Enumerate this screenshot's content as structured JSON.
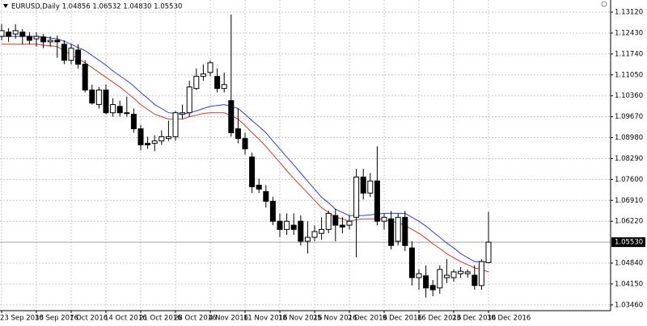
{
  "chart_data": {
    "type": "candlestick",
    "title": "EURUSD,Daily  1.04856 1.06532 1.04830 1.05530",
    "categories": [
      "23 Sep 2016",
      null,
      null,
      null,
      null,
      "30 Sep 2016",
      null,
      null,
      null,
      null,
      "7 Oct 2016",
      null,
      null,
      null,
      null,
      "14 Oct 2016",
      null,
      null,
      null,
      null,
      "21 Oct 2016",
      null,
      null,
      null,
      null,
      "28 Oct 2016",
      null,
      null,
      null,
      null,
      "4 Nov 2016",
      null,
      null,
      null,
      null,
      "11 Nov 2016",
      null,
      null,
      null,
      null,
      "18 Nov 2016",
      null,
      null,
      null,
      null,
      "25 Nov 2016",
      null,
      null,
      null,
      null,
      "2 Dec 2016",
      null,
      null,
      null,
      null,
      "9 Dec 2016",
      null,
      null,
      null,
      null,
      "16 Dec 2016",
      null,
      null,
      null,
      null,
      "23 Dec 2016",
      null,
      null,
      null,
      null,
      "30 Dec 2016"
    ],
    "open": [
      1.1232,
      1.1246,
      1.124,
      1.1246,
      1.1232,
      1.1224,
      1.123,
      1.1214,
      1.1219,
      1.1206,
      1.1153,
      1.1187,
      1.114,
      1.1055,
      1.1007,
      1.1055,
      1.098,
      1.1001,
      1.098,
      1.0975,
      1.0927,
      1.0879,
      1.0879,
      1.0887,
      1.0895,
      1.0901,
      1.0975,
      1.098,
      1.106,
      1.11,
      1.1113,
      1.11,
      1.106,
      1.102,
      1.0927,
      1.0895,
      1.0834,
      1.0741,
      1.072,
      1.0688,
      1.0622,
      1.0595,
      1.0609,
      1.0622,
      1.0556,
      1.0569,
      1.0582,
      1.0595,
      1.0641,
      1.0609,
      1.0609,
      1.0635,
      1.0768,
      1.0715,
      1.0755,
      1.0622,
      1.063,
      1.0556,
      1.0635,
      1.0534,
      1.0436,
      1.0442,
      1.041,
      1.0402,
      1.0436,
      1.0436,
      1.0449,
      1.0449,
      1.0444,
      1.041,
      1.04856
    ],
    "high": [
      1.1272,
      1.1259,
      1.1272,
      1.1256,
      1.1246,
      1.1246,
      1.124,
      1.1232,
      1.1235,
      1.1219,
      1.1206,
      1.1206,
      1.1153,
      1.1073,
      1.1065,
      1.1073,
      1.1028,
      1.102,
      1.1033,
      1.0994,
      1.094,
      1.0901,
      1.0906,
      1.0922,
      1.0954,
      1.0986,
      1.1007,
      1.1086,
      1.1126,
      1.114,
      1.1153,
      1.1126,
      1.1113,
      1.1304,
      1.0994,
      1.0914,
      1.0848,
      1.0763,
      1.0741,
      1.0702,
      1.0648,
      1.0648,
      1.0648,
      1.0641,
      1.0622,
      1.0609,
      1.0635,
      1.0657,
      1.0662,
      1.0635,
      1.0641,
      1.0795,
      1.0795,
      1.0781,
      1.0869,
      1.0648,
      1.0656,
      1.0648,
      1.0656,
      1.0556,
      1.0463,
      1.0476,
      1.0428,
      1.0476,
      1.0497,
      1.0463,
      1.0471,
      1.0463,
      1.0476,
      1.0497,
      1.06532
    ],
    "low": [
      1.1219,
      1.1214,
      1.1224,
      1.1206,
      1.1206,
      1.1198,
      1.1193,
      1.1198,
      1.1161,
      1.114,
      1.114,
      1.1126,
      1.1047,
      1.1007,
      1.0994,
      1.0975,
      1.0967,
      1.0967,
      1.0967,
      1.0914,
      1.0856,
      1.0861,
      1.0853,
      1.0874,
      1.0887,
      1.0887,
      1.0959,
      1.0967,
      1.1055,
      1.1086,
      1.11,
      1.1047,
      1.1047,
      1.0901,
      1.0879,
      1.0842,
      1.0715,
      1.0715,
      1.0667,
      1.0609,
      1.0569,
      1.0577,
      1.0577,
      1.0542,
      1.0516,
      1.0556,
      1.0561,
      1.0582,
      1.0556,
      1.0582,
      1.0595,
      1.0503,
      1.0694,
      1.0702,
      1.0609,
      1.0595,
      1.0529,
      1.0542,
      1.0524,
      1.041,
      1.0396,
      1.037,
      1.0375,
      1.0383,
      1.0418,
      1.0423,
      1.0436,
      1.0436,
      1.0396,
      1.0396,
      1.0483
    ],
    "close": [
      1.1251,
      1.1232,
      1.1251,
      1.1232,
      1.1219,
      1.1232,
      1.1214,
      1.1219,
      1.1214,
      1.1153,
      1.1193,
      1.114,
      1.1055,
      1.1012,
      1.1055,
      1.098,
      1.1007,
      1.098,
      1.098,
      1.0927,
      1.0874,
      1.0874,
      1.0887,
      1.0901,
      1.0901,
      1.098,
      1.098,
      1.1065,
      1.11,
      1.1108,
      1.1145,
      1.106,
      1.1073,
      1.0914,
      1.0895,
      1.0861,
      1.0736,
      1.0728,
      1.0688,
      1.0622,
      1.0595,
      1.0622,
      1.0595,
      1.0556,
      1.0569,
      1.0588,
      1.0595,
      1.0648,
      1.0609,
      1.0603,
      1.0622,
      1.0768,
      1.0715,
      1.0755,
      1.0622,
      1.0635,
      1.0542,
      1.0635,
      1.0542,
      1.0436,
      1.0449,
      1.0402,
      1.0396,
      1.0463,
      1.0444,
      1.0455,
      1.0457,
      1.0455,
      1.041,
      1.0489,
      1.0553
    ],
    "series": [
      {
        "color": "#2f3fd0",
        "values": [
          1.1232,
          1.1232,
          1.1232,
          1.1232,
          1.1232,
          1.1232,
          1.123,
          1.1227,
          1.1224,
          1.1216,
          1.1206,
          1.1195,
          1.1185,
          1.1169,
          1.1153,
          1.1137,
          1.1118,
          1.1102,
          1.1086,
          1.1068,
          1.1047,
          1.1028,
          1.1007,
          1.0994,
          1.098,
          1.0978,
          1.0975,
          1.098,
          1.0986,
          1.0994,
          1.1001,
          1.1004,
          1.1007,
          1.1001,
          1.0994,
          1.0975,
          1.0954,
          1.0935,
          1.0914,
          1.0887,
          1.0861,
          1.0834,
          1.0808,
          1.0781,
          1.0754,
          1.0728,
          1.0701,
          1.0683,
          1.0662,
          1.0651,
          1.0641,
          1.0641,
          1.0641,
          1.0643,
          1.0646,
          1.0648,
          1.0648,
          1.0648,
          1.0648,
          1.0635,
          1.0622,
          1.0606,
          1.0587,
          1.0569,
          1.055,
          1.0534,
          1.0515,
          1.0502,
          1.0489,
          1.0489,
          1.0489
        ]
      },
      {
        "color": "#d03a2a",
        "values": [
          1.1206,
          1.1206,
          1.1206,
          1.1206,
          1.1206,
          1.1206,
          1.1203,
          1.1201,
          1.1198,
          1.1185,
          1.1171,
          1.1158,
          1.1145,
          1.1129,
          1.1113,
          1.1097,
          1.1081,
          1.1065,
          1.1047,
          1.1028,
          1.1007,
          1.0991,
          1.0975,
          1.0967,
          1.0959,
          1.0959,
          1.0959,
          1.0967,
          1.0972,
          1.0978,
          1.098,
          1.098,
          1.098,
          1.097,
          1.0959,
          1.0938,
          1.0914,
          1.0893,
          1.0869,
          1.0842,
          1.0816,
          1.0789,
          1.0763,
          1.0739,
          1.0715,
          1.0691,
          1.0667,
          1.0651,
          1.0635,
          1.063,
          1.0622,
          1.0627,
          1.063,
          1.063,
          1.063,
          1.0627,
          1.0622,
          1.0617,
          1.0609,
          1.0595,
          1.0582,
          1.0566,
          1.0548,
          1.0532,
          1.0515,
          1.0502,
          1.0489,
          1.0479,
          1.0468,
          1.0463,
          1.0455
        ]
      }
    ],
    "current_price": {
      "value": 1.0553,
      "label": "1.05530"
    },
    "ylim": [
      1.0327,
      1.1352
    ],
    "yticks": [
      {
        "value": 1.1312,
        "label": "1.13120"
      },
      {
        "value": 1.1243,
        "label": "1.12430"
      },
      {
        "value": 1.1174,
        "label": "1.11740"
      },
      {
        "value": 1.1105,
        "label": "1.11050"
      },
      {
        "value": 1.1036,
        "label": "1.10360"
      },
      {
        "value": 1.0967,
        "label": "1.09670"
      },
      {
        "value": 1.0898,
        "label": "1.08980"
      },
      {
        "value": 1.0829,
        "label": "1.08290"
      },
      {
        "value": 1.076,
        "label": "1.07600"
      },
      {
        "value": 1.0691,
        "label": "1.06910"
      },
      {
        "value": 1.0622,
        "label": "1.06220"
      },
      {
        "value": 1.0484,
        "label": "1.04840"
      },
      {
        "value": 1.0415,
        "label": "1.04150"
      },
      {
        "value": 1.0346,
        "label": "1.03460"
      }
    ],
    "grid": true,
    "up_color": "#ffffff",
    "down_color": "#000000"
  }
}
